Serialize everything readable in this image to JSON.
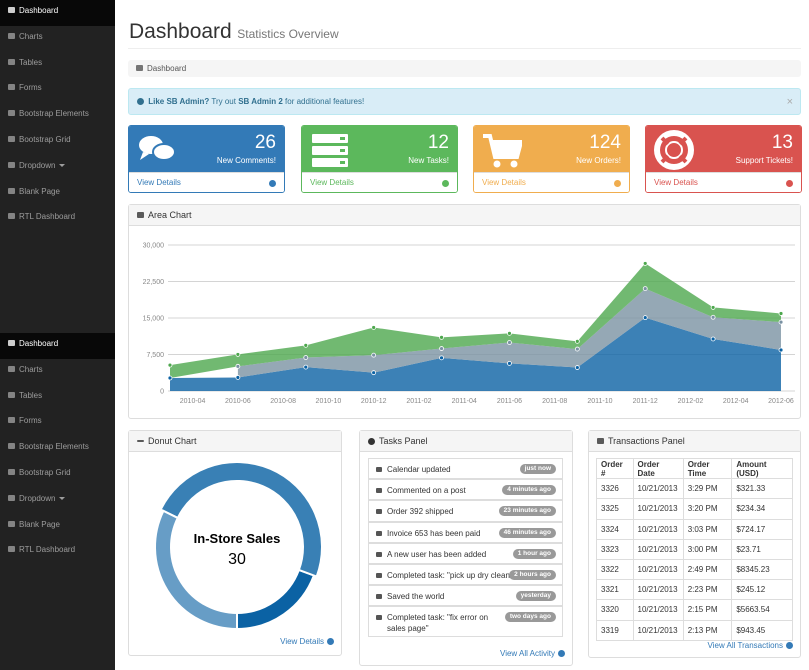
{
  "sidebar": {
    "items": [
      "Dashboard",
      "Charts",
      "Tables",
      "Forms",
      "Bootstrap Elements",
      "Bootstrap Grid",
      "Dropdown",
      "Blank Page",
      "RTL Dashboard"
    ]
  },
  "header": {
    "title": "Dashboard",
    "subtitle": "Statistics Overview"
  },
  "breadcrumb": "Dashboard",
  "alert": {
    "parts": [
      "Like SB Admin?",
      "Try out",
      "SB Admin 2",
      "for additional features!"
    ]
  },
  "stats": [
    {
      "number": 26,
      "label": "New Comments!",
      "link": "View Details",
      "color": "#337ab7"
    },
    {
      "number": 12,
      "label": "New Tasks!",
      "link": "View Details",
      "color": "#5cb85c"
    },
    {
      "number": 124,
      "label": "New Orders!",
      "link": "View Details",
      "color": "#f0ad4e"
    },
    {
      "number": 13,
      "label": "Support Tickets!",
      "link": "View Details",
      "color": "#d9534f"
    }
  ],
  "area_chart": {
    "type": "area",
    "title": "Area Chart",
    "stacked": true,
    "grid": true,
    "x": [
      "2010-03",
      "2010-06",
      "2010-09",
      "2010-12",
      "2011-03",
      "2011-06",
      "2011-09",
      "2011-12",
      "2012-03",
      "2012-06"
    ],
    "series": [
      {
        "color": "#0b62a4",
        "values": [
          2666,
          2778,
          4912,
          3767,
          6810,
          5670,
          4820,
          15073,
          10687,
          8432
        ]
      },
      {
        "color": "#7a92a3",
        "values": [
          null,
          2294,
          1969,
          3597,
          1914,
          4293,
          3795,
          5967,
          4460,
          5713
        ]
      },
      {
        "color": "#4da74d",
        "values": [
          2647,
          2441,
          2501,
          5689,
          2293,
          1881,
          1588,
          5175,
          2028,
          1791
        ]
      }
    ],
    "xlim": [
      "2010-03",
      "2012-06"
    ],
    "xticks": [
      "2010-04",
      "2010-06",
      "2010-08",
      "2010-10",
      "2010-12",
      "2011-02",
      "2011-04",
      "2011-06",
      "2011-08",
      "2011-10",
      "2011-12",
      "2012-02",
      "2012-04",
      "2012-06"
    ],
    "ylim": [
      0,
      30000
    ],
    "yticks": [
      0,
      {
        "value": 7500,
        "label": "7,500"
      },
      {
        "value": 15000,
        "label": "15,000"
      },
      {
        "value": 22500,
        "label": "22,500"
      },
      {
        "value": 30000,
        "label": "30,000"
      }
    ]
  },
  "donut_chart": {
    "type": "pie",
    "title": "Donut Chart",
    "categories": [
      null,
      "In-Store Sales",
      null
    ],
    "values": [
      12,
      30,
      20
    ],
    "colors": [
      "#0b62a4",
      "#3980b5",
      "#679dc6"
    ],
    "link": "View Details"
  },
  "tasks_panel": {
    "title": "Tasks Panel",
    "items": [
      {
        "text": "Calendar updated",
        "time": "just now"
      },
      {
        "text": "Commented on a post",
        "time": "4 minutes ago"
      },
      {
        "text": "Order 392 shipped",
        "time": "23 minutes ago"
      },
      {
        "text": "Invoice 653 has been paid",
        "time": "46 minutes ago"
      },
      {
        "text": "A new user has been added",
        "time": "1 hour ago"
      },
      {
        "text": "Completed task: \"pick up dry cleaning\"",
        "time": "2 hours ago"
      },
      {
        "text": "Saved the world",
        "time": "yesterday"
      },
      {
        "text": "Completed task: \"fix error on sales page\"",
        "time": "two days ago"
      }
    ],
    "link": "View All Activity"
  },
  "transactions_panel": {
    "title": "Transactions Panel",
    "columns": [
      "Order #",
      "Order Date",
      "Order Time",
      "Amount (USD)"
    ],
    "rows": [
      [
        3326,
        "10/21/2013",
        "3:29 PM",
        "$321.33"
      ],
      [
        3325,
        "10/21/2013",
        "3:20 PM",
        "$234.34"
      ],
      [
        3324,
        "10/21/2013",
        "3:03 PM",
        "$724.17"
      ],
      [
        3323,
        "10/21/2013",
        "3:00 PM",
        "$23.71"
      ],
      [
        3322,
        "10/21/2013",
        "2:49 PM",
        "$8345.23"
      ],
      [
        3321,
        "10/21/2013",
        "2:23 PM",
        "$245.12"
      ],
      [
        3320,
        "10/21/2013",
        "2:15 PM",
        "$5663.54"
      ],
      [
        3319,
        "10/21/2013",
        "2:13 PM",
        "$943.45"
      ]
    ],
    "link": "View All Transactions"
  }
}
